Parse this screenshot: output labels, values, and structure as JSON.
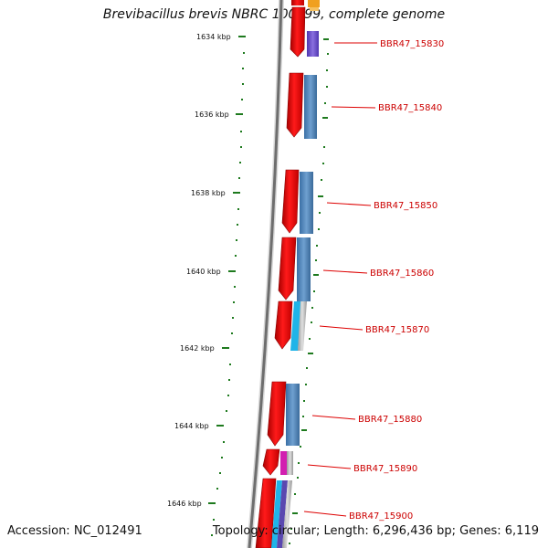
{
  "title": "Brevibacillus brevis NBRC 100599, complete genome",
  "accession_text": "Accession: NC_012491",
  "summary_text": "Topology: circular; Length: 6,296,436 bp; Genes: 6,119",
  "scale_labels": [
    "1634 kbp",
    "1636 kbp",
    "1638 kbp",
    "1640 kbp",
    "1642 kbp",
    "1644 kbp",
    "1646 kbp"
  ],
  "gene_labels": [
    "BBR47_15830",
    "BBR47_15840",
    "BBR47_15850",
    "BBR47_15860",
    "BBR47_15870",
    "BBR47_15880",
    "BBR47_15890",
    "BBR47_15900"
  ],
  "colors": {
    "gene_arrow": "#e8000b",
    "gene_arrow_dark": "#a80000",
    "scale_tick": "#1e7a1e",
    "label_text": "#cc0000",
    "callout_line": "#dd0000",
    "backbone": "#777777",
    "blue_block": "#4a7fb5",
    "purple_block": "#6a4fc8",
    "cyan_block": "#1fb4e8",
    "magenta_block": "#d21fb0",
    "grey_block": "#c8c8c8",
    "orange_block": "#f0a020"
  }
}
